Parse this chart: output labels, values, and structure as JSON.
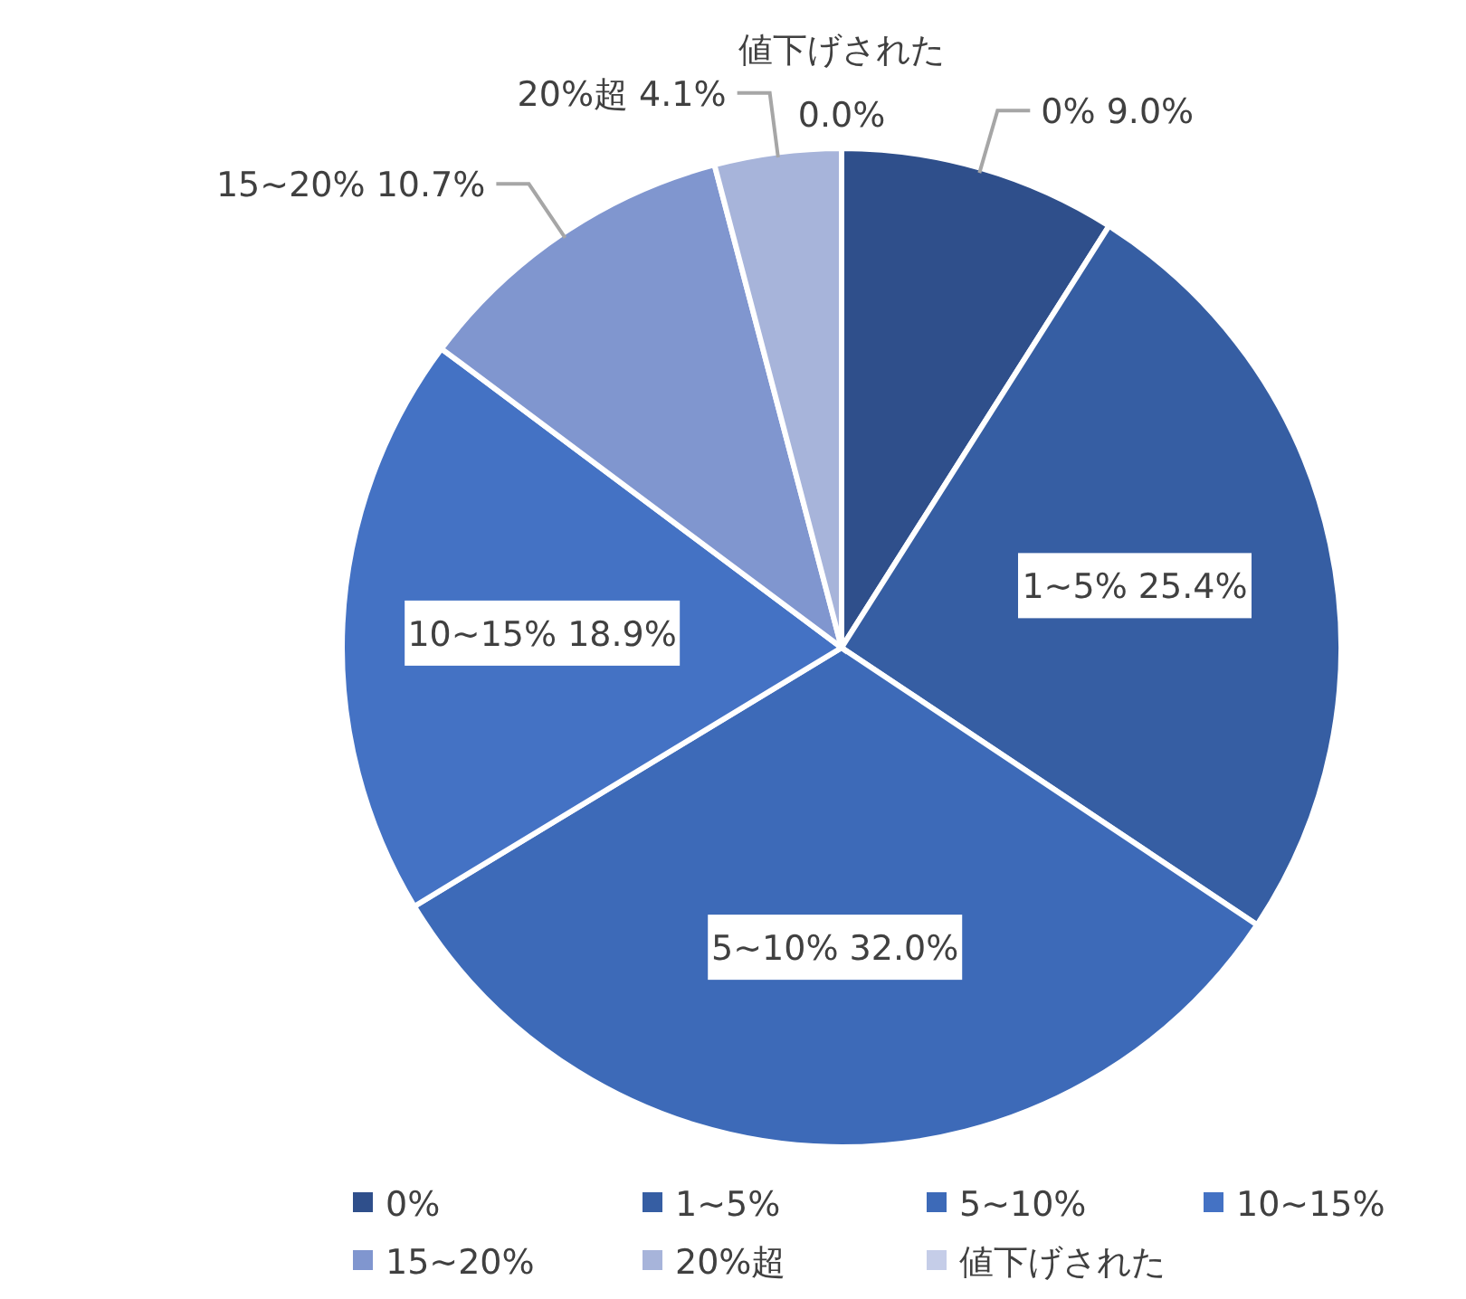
{
  "chart_data": {
    "type": "pie",
    "categories": [
      "0%",
      "1~5%",
      "5~10%",
      "10~15%",
      "15~20%",
      "20%超",
      "値下げされた"
    ],
    "values": [
      9.0,
      25.4,
      32.0,
      18.9,
      10.7,
      4.1,
      0.0
    ],
    "value_labels": [
      "9.0%",
      "25.4%",
      "32.0%",
      "18.9%",
      "10.7%",
      "4.1%",
      "0.0%"
    ],
    "colors": [
      "#2f4f8b",
      "#365ea3",
      "#3d6ab8",
      "#4472c4",
      "#8096cf",
      "#a7b4da",
      "#c5cde8"
    ],
    "legend": "bottom"
  }
}
